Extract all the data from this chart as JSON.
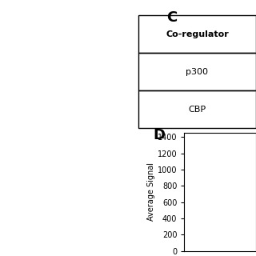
{
  "panel_c_title": "C",
  "panel_d_title": "D",
  "table_header": "Co-regulator",
  "table_rows": [
    "p300",
    "CBP"
  ],
  "ylabel": "Average Signal",
  "yticks": [
    0,
    200,
    400,
    600,
    800,
    1000,
    1200,
    1400
  ],
  "ylim": [
    0,
    1450
  ],
  "background_color": "#ffffff",
  "text_color": "#000000",
  "table_border_color": "#000000",
  "font_size_title": 13,
  "font_size_table": 8,
  "font_size_axis": 7,
  "font_size_ylabel": 7
}
